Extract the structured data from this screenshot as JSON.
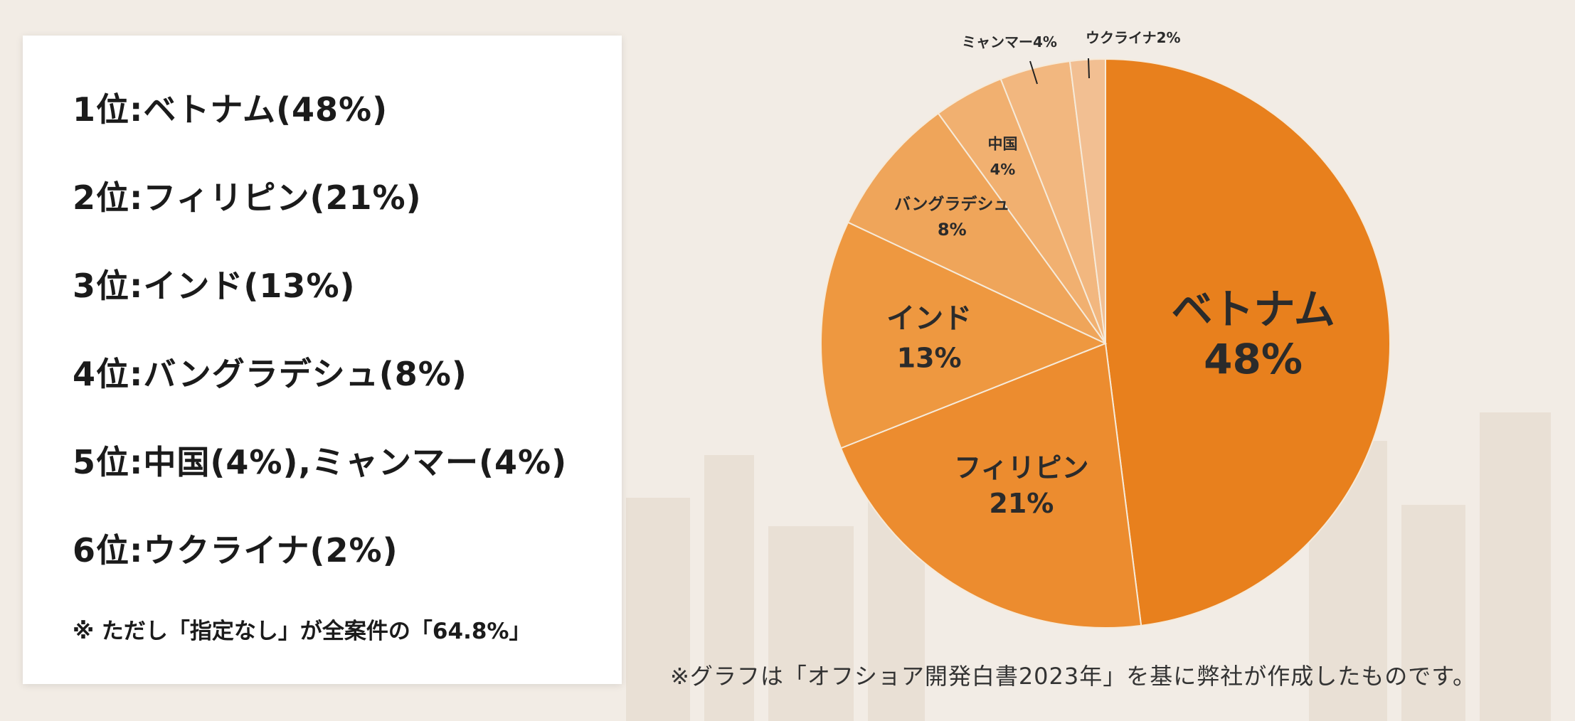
{
  "ranking": {
    "items": [
      "1位:ベトナム(48%)",
      "2位:フィリピン(21%)",
      "3位:インド(13%)",
      "4位:バングラデシュ(8%)",
      "5位:中国(4%),ミャンマー(4%)",
      "6位:ウクライナ(2%)"
    ],
    "note": "※ ただし「指定なし」が全案件の「64.8%」"
  },
  "footnote": "※グラフは「オフショア開発白書2023年」を基に弊社が作成したものです。",
  "colors": {
    "background": "#f2ece5",
    "slices": [
      "#e8801d",
      "#ec8c2f",
      "#ee9840",
      "#efa55a",
      "#f1b070",
      "#f2b77f",
      "#f2bf92"
    ],
    "slice_border": "#f6ead9",
    "label_text": "#2b2b2b"
  },
  "chart_data": {
    "type": "pie",
    "title": "",
    "start": "12 o'clock",
    "direction": "clockwise",
    "slices": [
      {
        "label": "ベトナム",
        "value_label": "48%",
        "value": 48
      },
      {
        "label": "フィリピン",
        "value_label": "21%",
        "value": 21
      },
      {
        "label": "インド",
        "value_label": "13%",
        "value": 13
      },
      {
        "label": "バングラデシュ",
        "value_label": "8%",
        "value": 8
      },
      {
        "label": "中国",
        "value_label": "4%",
        "value": 4
      },
      {
        "label": "ミャンマー",
        "value_label": "4%",
        "value": 4
      },
      {
        "label": "ウクライナ",
        "value_label": "2%",
        "value": 2
      }
    ],
    "outside_labels": [
      "ミャンマー4%",
      "ウクライナ2%"
    ]
  }
}
